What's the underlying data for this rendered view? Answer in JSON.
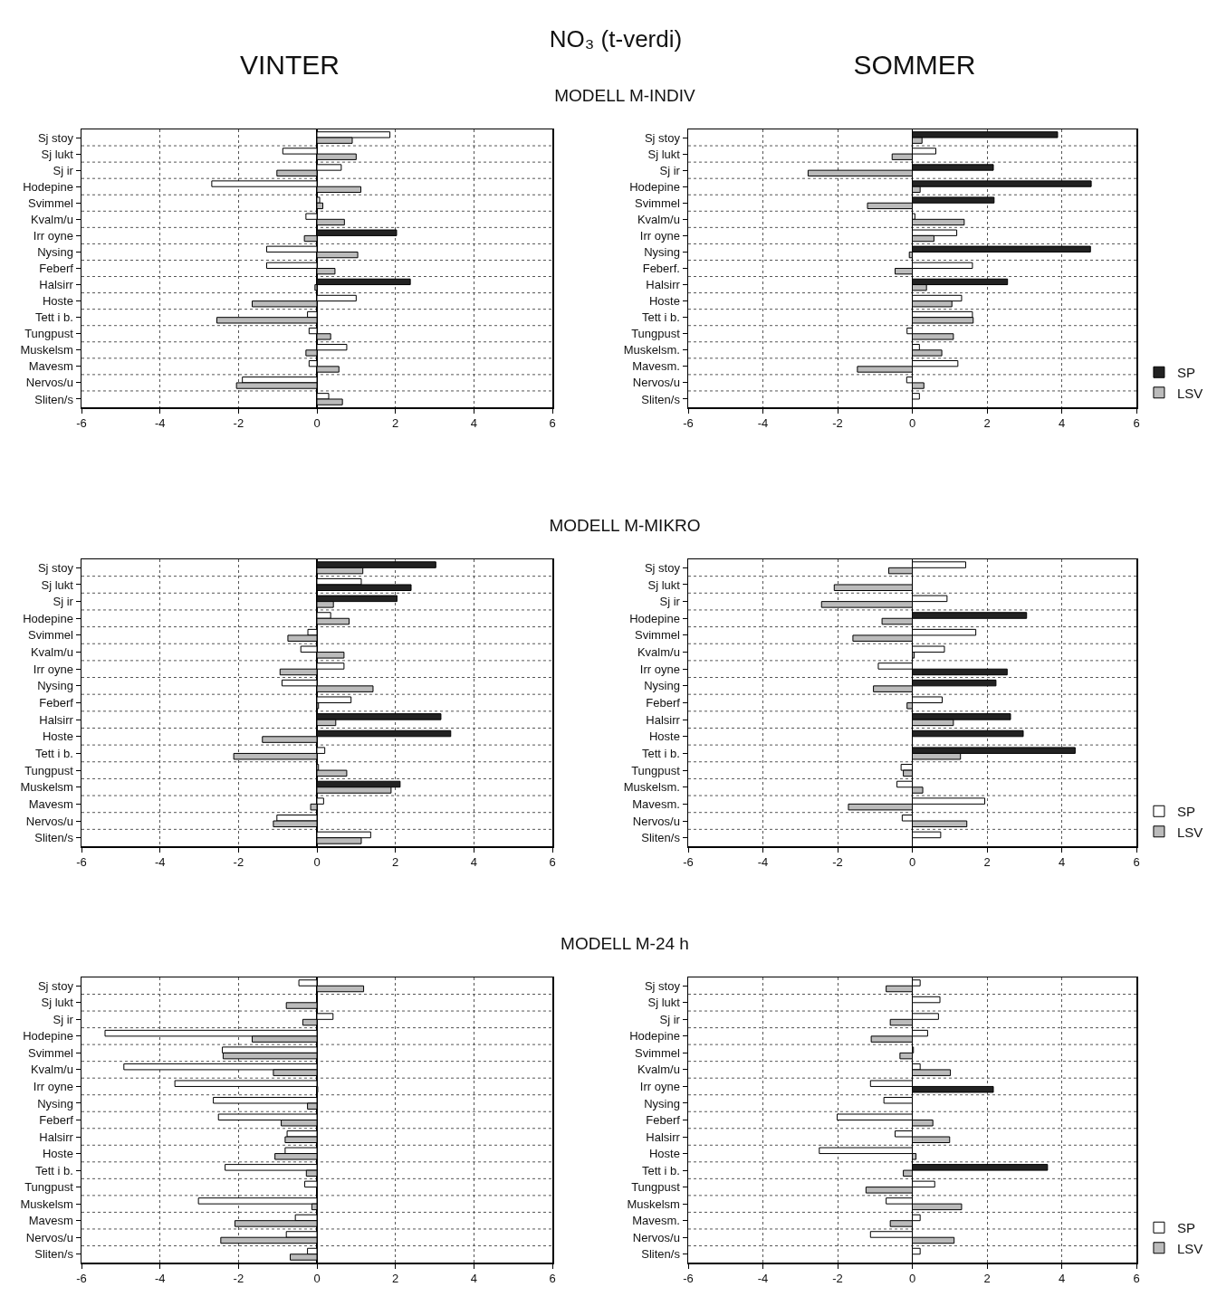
{
  "chart_data": [
    {
      "type": "bar",
      "orientation": "horizontal",
      "title": "NO₃ (t-verdi)",
      "subtitle": "VINTER",
      "annotations": [
        "MODELL M-INDIV"
      ],
      "categories": [
        "Sj stoy",
        "Sj lukt",
        "Sj ir",
        "Hodepine",
        "Svimmel",
        "Kvalm/u",
        "Irr oyne",
        "Nysing",
        "Feberf",
        "Halsirr",
        "Hoste",
        "Tett i b.",
        "Tungpust",
        "Muskelsm",
        "Mavesm",
        "Nervos/u",
        "Sliten/s"
      ],
      "xlim": [
        -6,
        6
      ],
      "xticks": [
        -6,
        -4,
        -2,
        0,
        2,
        4,
        6
      ],
      "grid": true,
      "legend": false,
      "series": [
        {
          "colors": [
            "#ffffff",
            "#ffffff",
            "#ffffff",
            "#ffffff",
            "#ffffff",
            "#ffffff",
            "#222222",
            "#ffffff",
            "#ffffff",
            "#222222",
            "#ffffff",
            "#ffffff",
            "#ffffff",
            "#ffffff",
            "#ffffff",
            "#ffffff",
            "#ffffff"
          ],
          "values": [
            1.86,
            -0.87,
            0.62,
            -2.68,
            0.07,
            -0.28,
            2.03,
            -1.28,
            -1.28,
            2.38,
            1.0,
            -0.24,
            -0.2,
            0.76,
            -0.2,
            -1.9,
            0.3
          ]
        },
        {
          "colors": [
            "#bbbbbb",
            "#bbbbbb",
            "#bbbbbb",
            "#bbbbbb",
            "#bbbbbb",
            "#bbbbbb",
            "#bbbbbb",
            "#bbbbbb",
            "#bbbbbb",
            "#bbbbbb",
            "#bbbbbb",
            "#bbbbbb",
            "#bbbbbb",
            "#bbbbbb",
            "#bbbbbb",
            "#bbbbbb",
            "#bbbbbb"
          ],
          "values": [
            0.9,
            1.0,
            -1.02,
            1.12,
            0.15,
            0.7,
            -0.32,
            1.04,
            0.46,
            -0.05,
            -1.65,
            -2.55,
            0.35,
            -0.28,
            0.56,
            -2.05,
            0.65
          ]
        }
      ]
    },
    {
      "type": "bar",
      "orientation": "horizontal",
      "subtitle": "SOMMER",
      "categories": [
        "Sj stoy",
        "Sj lukt",
        "Sj ir",
        "Hodepine",
        "Svimmel",
        "Kvalm/u",
        "Irr oyne",
        "Nysing",
        "Feberf.",
        "Halsirr",
        "Hoste",
        "Tett i b.",
        "Tungpust",
        "Muskelsm.",
        "Mavesm.",
        "Nervos/u",
        "Sliten/s"
      ],
      "xlim": [
        -6,
        6
      ],
      "xticks": [
        -6,
        -4,
        -2,
        0,
        2,
        4,
        6
      ],
      "grid": true,
      "legend": "bottom right",
      "series": [
        {
          "name": "SP",
          "colors": [
            "#222222",
            "#ffffff",
            "#222222",
            "#222222",
            "#222222",
            "#ffffff",
            "#ffffff",
            "#222222",
            "#ffffff",
            "#222222",
            "#ffffff",
            "#ffffff",
            "#ffffff",
            "#ffffff",
            "#ffffff",
            "#ffffff",
            "#ffffff"
          ],
          "values": [
            3.89,
            0.63,
            2.17,
            4.79,
            2.19,
            0.07,
            1.19,
            4.77,
            1.61,
            2.55,
            1.32,
            1.61,
            -0.14,
            0.19,
            1.22,
            -0.15,
            0.19
          ]
        },
        {
          "name": "LSV",
          "colors": [
            "#bbbbbb",
            "#bbbbbb",
            "#bbbbbb",
            "#bbbbbb",
            "#bbbbbb",
            "#bbbbbb",
            "#bbbbbb",
            "#bbbbbb",
            "#bbbbbb",
            "#bbbbbb",
            "#bbbbbb",
            "#bbbbbb",
            "#bbbbbb",
            "#bbbbbb",
            "#bbbbbb",
            "#bbbbbb",
            "#bbbbbb"
          ],
          "values": [
            0.26,
            -0.54,
            -2.79,
            0.21,
            -1.2,
            1.39,
            0.58,
            -0.08,
            -0.46,
            0.38,
            1.06,
            1.63,
            1.1,
            0.79,
            -1.47,
            0.31,
            null
          ]
        }
      ]
    },
    {
      "type": "bar",
      "orientation": "horizontal",
      "annotations": [
        "MODELL M-MIKRO"
      ],
      "categories": [
        "Sj stoy",
        "Sj lukt",
        "Sj ir",
        "Hodepine",
        "Svimmel",
        "Kvalm/u",
        "Irr oyne",
        "Nysing",
        "Feberf",
        "Halsirr",
        "Hoste",
        "Tett i b.",
        "Tungpust",
        "Muskelsm",
        "Mavesm",
        "Nervos/u",
        "Sliten/s"
      ],
      "xlim": [
        -6,
        6
      ],
      "xticks": [
        -6,
        -4,
        -2,
        0,
        2,
        4,
        6
      ],
      "grid": true,
      "legend": false,
      "series": [
        {
          "colors": [
            "#222222",
            "#ffffff",
            "#222222",
            "#ffffff",
            "#ffffff",
            "#ffffff",
            "#ffffff",
            "#ffffff",
            "#ffffff",
            "#222222",
            "#222222",
            "#ffffff",
            "#ffffff",
            "#222222",
            "#ffffff",
            "#ffffff",
            "#ffffff"
          ],
          "values": [
            3.03,
            1.13,
            2.04,
            0.35,
            -0.23,
            -0.41,
            0.69,
            -0.89,
            0.87,
            3.16,
            3.41,
            0.2,
            0.04,
            2.12,
            0.17,
            -1.02,
            1.37
          ]
        },
        {
          "colors": [
            "#bbbbbb",
            "#222222",
            "#bbbbbb",
            "#bbbbbb",
            "#bbbbbb",
            "#bbbbbb",
            "#bbbbbb",
            "#bbbbbb",
            "#bbbbbb",
            "#bbbbbb",
            "#bbbbbb",
            "#bbbbbb",
            "#bbbbbb",
            "#bbbbbb",
            "#bbbbbb",
            "#bbbbbb",
            "#bbbbbb"
          ],
          "values": [
            1.17,
            2.4,
            0.42,
            0.82,
            -0.74,
            0.69,
            -0.94,
            1.43,
            0.04,
            0.48,
            -1.39,
            -2.12,
            0.76,
            1.89,
            -0.16,
            -1.11,
            1.13
          ]
        }
      ]
    },
    {
      "type": "bar",
      "orientation": "horizontal",
      "categories": [
        "Sj stoy",
        "Sj lukt",
        "Sj ir",
        "Hodepine",
        "Svimmel",
        "Kvalm/u",
        "Irr oyne",
        "Nysing",
        "Feberf",
        "Halsirr",
        "Hoste",
        "Tett i b.",
        "Tungpust",
        "Muskelsm.",
        "Mavesm.",
        "Nervos/u",
        "Sliten/s"
      ],
      "xlim": [
        -6,
        6
      ],
      "xticks": [
        -6,
        -4,
        -2,
        0,
        2,
        4,
        6
      ],
      "grid": true,
      "legend": "bottom right",
      "series": [
        {
          "name": "SP",
          "colors": [
            "#ffffff",
            "#ffffff",
            "#ffffff",
            "#222222",
            "#ffffff",
            "#ffffff",
            "#ffffff",
            "#222222",
            "#ffffff",
            "#222222",
            "#222222",
            "#222222",
            "#ffffff",
            "#ffffff",
            "#ffffff",
            "#ffffff",
            "#ffffff"
          ],
          "values": [
            1.43,
            null,
            0.93,
            3.06,
            1.7,
            0.86,
            -0.91,
            2.24,
            0.8,
            2.63,
            2.97,
            4.36,
            -0.3,
            -0.41,
            1.94,
            -0.27,
            0.76
          ]
        },
        {
          "name": "LSV",
          "colors": [
            "#bbbbbb",
            "#bbbbbb",
            "#bbbbbb",
            "#bbbbbb",
            "#bbbbbb",
            "#bbbbbb",
            "#222222",
            "#bbbbbb",
            "#bbbbbb",
            "#bbbbbb",
            "#bbbbbb",
            "#bbbbbb",
            "#bbbbbb",
            "#bbbbbb",
            "#bbbbbb",
            "#bbbbbb",
            "#bbbbbb"
          ],
          "values": [
            -0.63,
            -2.09,
            -2.43,
            -0.81,
            -1.59,
            0.05,
            2.54,
            -1.04,
            -0.14,
            1.1,
            null,
            1.29,
            -0.24,
            0.28,
            -1.71,
            1.46,
            null
          ]
        }
      ]
    },
    {
      "type": "bar",
      "orientation": "horizontal",
      "annotations": [
        "MODELL M-24 h"
      ],
      "categories": [
        "Sj stoy",
        "Sj lukt",
        "Sj ir",
        "Hodepine",
        "Svimmel",
        "Kvalm/u",
        "Irr oyne",
        "Nysing",
        "Feberf",
        "Halsirr",
        "Hoste",
        "Tett i b.",
        "Tungpust",
        "Muskelsm",
        "Mavesm",
        "Nervos/u",
        "Sliten/s"
      ],
      "xlim": [
        -6,
        6
      ],
      "xticks": [
        -6,
        -4,
        -2,
        0,
        2,
        4,
        6
      ],
      "grid": true,
      "legend": false,
      "series": [
        {
          "colors": [
            "#ffffff",
            "#ffffff",
            "#ffffff",
            "#ffffff",
            "#ffffff",
            "#ffffff",
            "#ffffff",
            "#ffffff",
            "#ffffff",
            "#ffffff",
            "#ffffff",
            "#ffffff",
            "#ffffff",
            "#ffffff",
            "#ffffff",
            "#ffffff",
            "#ffffff"
          ],
          "values": [
            -0.46,
            null,
            0.41,
            -5.4,
            -2.41,
            -4.92,
            -3.62,
            -2.64,
            -2.51,
            -0.76,
            -0.81,
            -2.34,
            -0.31,
            -3.02,
            -0.55,
            -0.78,
            -0.24
          ]
        },
        {
          "colors": [
            "#bbbbbb",
            "#bbbbbb",
            "#bbbbbb",
            "#bbbbbb",
            "#bbbbbb",
            "#bbbbbb",
            "#bbbbbb",
            "#bbbbbb",
            "#bbbbbb",
            "#bbbbbb",
            "#bbbbbb",
            "#bbbbbb",
            "#bbbbbb",
            "#bbbbbb",
            "#bbbbbb",
            "#bbbbbb",
            "#bbbbbb"
          ],
          "values": [
            1.19,
            -0.78,
            -0.36,
            -1.65,
            -2.39,
            -1.11,
            0.02,
            -0.24,
            -0.91,
            -0.81,
            -1.07,
            -0.27,
            null,
            -0.13,
            -2.09,
            -2.45,
            -0.68
          ]
        }
      ]
    },
    {
      "type": "bar",
      "orientation": "horizontal",
      "categories": [
        "Sj stoy",
        "Sj lukt",
        "Sj ir",
        "Hodepine",
        "Svimmel",
        "Kvalm/u",
        "Irr oyne",
        "Nysing",
        "Feberf",
        "Halsirr",
        "Hoste",
        "Tett i b.",
        "Tungpust",
        "Muskelsm",
        "Mavesm.",
        "Nervos/u",
        "Sliten/s"
      ],
      "xlim": [
        -6,
        6
      ],
      "xticks": [
        -6,
        -4,
        -2,
        0,
        2,
        4,
        6
      ],
      "grid": true,
      "legend": "bottom right",
      "series": [
        {
          "name": "SP",
          "colors": [
            "#ffffff",
            "#ffffff",
            "#ffffff",
            "#ffffff",
            "#ffffff",
            "#ffffff",
            "#ffffff",
            "#ffffff",
            "#ffffff",
            "#ffffff",
            "#ffffff",
            "#222222",
            "#ffffff",
            "#ffffff",
            "#ffffff",
            "#ffffff",
            "#ffffff"
          ],
          "values": [
            0.21,
            0.74,
            0.7,
            0.41,
            0.03,
            0.21,
            -1.12,
            -0.76,
            -2.01,
            -0.46,
            -2.49,
            3.62,
            0.6,
            -0.7,
            0.21,
            -1.12,
            0.21
          ]
        },
        {
          "name": "LSV",
          "colors": [
            "#bbbbbb",
            "#bbbbbb",
            "#bbbbbb",
            "#bbbbbb",
            "#bbbbbb",
            "#bbbbbb",
            "#222222",
            "#bbbbbb",
            "#bbbbbb",
            "#bbbbbb",
            "#bbbbbb",
            "#bbbbbb",
            "#bbbbbb",
            "#bbbbbb",
            "#bbbbbb",
            "#bbbbbb",
            "#bbbbbb"
          ],
          "values": [
            -0.7,
            null,
            -0.59,
            -1.1,
            -0.33,
            1.02,
            2.17,
            null,
            0.55,
            1.0,
            0.1,
            -0.24,
            -1.24,
            1.32,
            -0.59,
            1.12,
            null
          ]
        }
      ]
    }
  ]
}
